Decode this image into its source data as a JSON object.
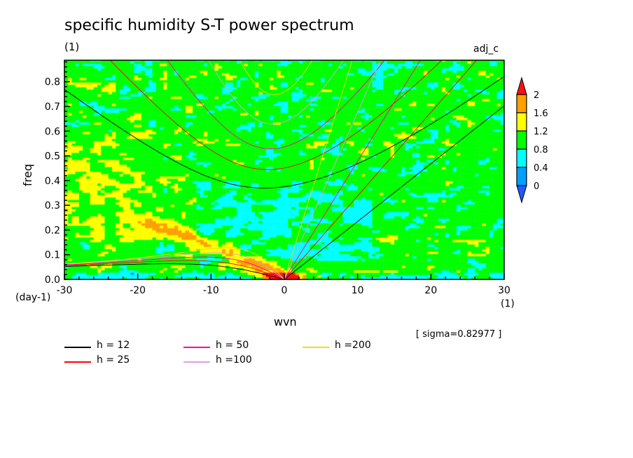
{
  "chart_data": {
    "type": "heatmap",
    "title": "specific humidity S-T power spectrum",
    "subtitle": "(1)",
    "experiment": "adj_c",
    "xlabel": "wvn",
    "xunits": "(1)",
    "ylabel": "freq",
    "yunits": "(day-1)",
    "xlim": [
      -30,
      30
    ],
    "ylim": [
      0,
      0.887
    ],
    "xticks": [
      -30,
      -20,
      -10,
      0,
      10,
      20,
      30
    ],
    "xtick_labels": [
      "-30",
      "-20",
      "-10",
      "0",
      "10",
      "20",
      "30"
    ],
    "yticks": [
      0,
      0.1,
      0.2,
      0.3,
      0.4,
      0.5,
      0.6,
      0.7,
      0.8
    ],
    "ytick_labels": [
      "0.0",
      "0.1",
      "0.2",
      "0.3",
      "0.4",
      "0.5",
      "0.6",
      "0.7",
      "0.8"
    ],
    "levels": [
      0,
      0.4,
      0.8,
      1.2,
      1.6,
      2
    ],
    "level_labels": [
      "0",
      "0.4",
      "0.8",
      "1.2",
      "1.6",
      "2"
    ],
    "level_colors": [
      "#1e5aff",
      "#00a0ff",
      "#00ffff",
      "#00ff00",
      "#ffff00",
      "#ffa000",
      "#ff1010"
    ],
    "sigma_text": "[ sigma=0.82977 ]",
    "dispersion_curves": [
      {
        "h": 12,
        "label": "h = 12",
        "color": "#000000"
      },
      {
        "h": 25,
        "label": "h = 25",
        "color": "#ff0000"
      },
      {
        "h": 50,
        "label": "h = 50",
        "color": "#ff00aa"
      },
      {
        "h": 100,
        "label": "h =100",
        "color": "#dda0dd"
      },
      {
        "h": 200,
        "label": "h =200",
        "color": "#ffd700"
      }
    ]
  }
}
